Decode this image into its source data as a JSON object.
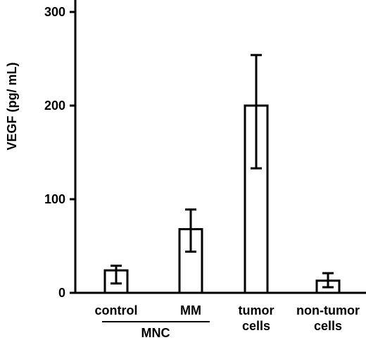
{
  "chart_data": {
    "type": "bar",
    "ylabel": "VEGF (pg/ mL)",
    "ylim": [
      0,
      300
    ],
    "yticks": [
      "0",
      "100",
      "200",
      "300"
    ],
    "categories": [
      [
        "control"
      ],
      [
        "MM"
      ],
      [
        "tumor",
        "cells"
      ],
      [
        "non-tumor",
        "cells"
      ]
    ],
    "values": [
      24,
      68,
      200,
      13
    ],
    "errors": [
      [
        10,
        29
      ],
      [
        44,
        89
      ],
      [
        133,
        254
      ],
      [
        6,
        21
      ]
    ],
    "group": {
      "label": "MNC",
      "members": [
        0,
        1
      ]
    },
    "colors": {
      "bar_fill": "#ffffff",
      "stroke": "#000000"
    }
  }
}
